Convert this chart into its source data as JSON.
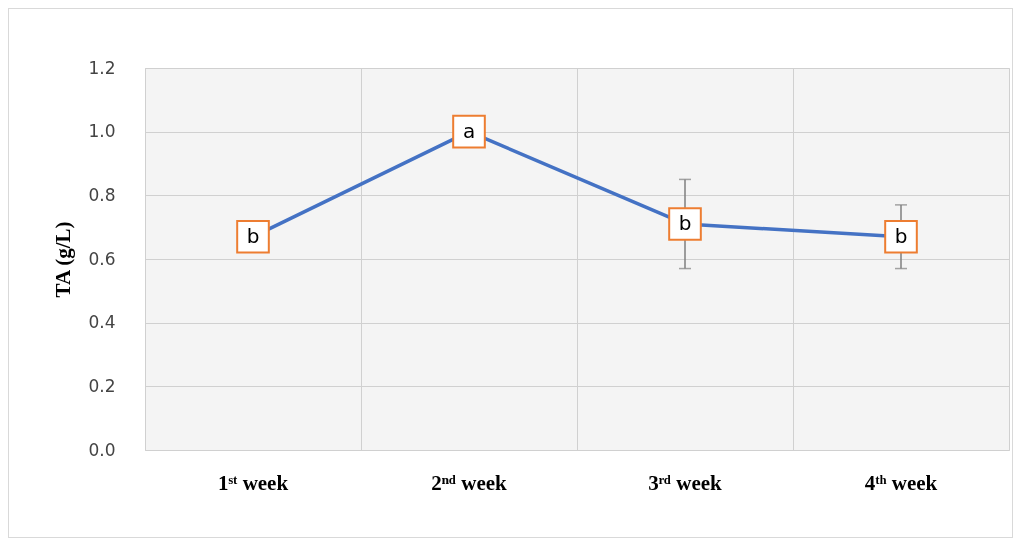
{
  "chart_data": {
    "type": "line",
    "ylabel": "TA (g/L)",
    "categories": [
      "1ˢᵗ week",
      "2ⁿᵈ week",
      "3ʳᵈ week",
      "4ᵗʰ week"
    ],
    "series": [
      {
        "color": "#4472c4",
        "values": [
          0.67,
          1.0,
          0.71,
          0.67
        ],
        "errors": [
          null,
          null,
          0.14,
          0.1
        ]
      }
    ],
    "ylim": [
      0,
      1.2
    ],
    "yticks": [
      {
        "value": 0,
        "label": "0.0"
      },
      0.2,
      0.4,
      0.6,
      0.8,
      {
        "value": 1,
        "label": "1.0"
      },
      1.2
    ],
    "grid": true,
    "marker": "square",
    "annotations": [
      {
        "text": "b",
        "x": "1ˢᵗ week",
        "y": 0.67
      },
      {
        "text": "a",
        "x": "2ⁿᵈ week",
        "y": 1.0
      },
      {
        "text": "b",
        "x": "3ʳᵈ week",
        "y": 0.71
      },
      {
        "text": "b",
        "x": "4ᵗʰ week",
        "y": 0.67
      }
    ]
  }
}
